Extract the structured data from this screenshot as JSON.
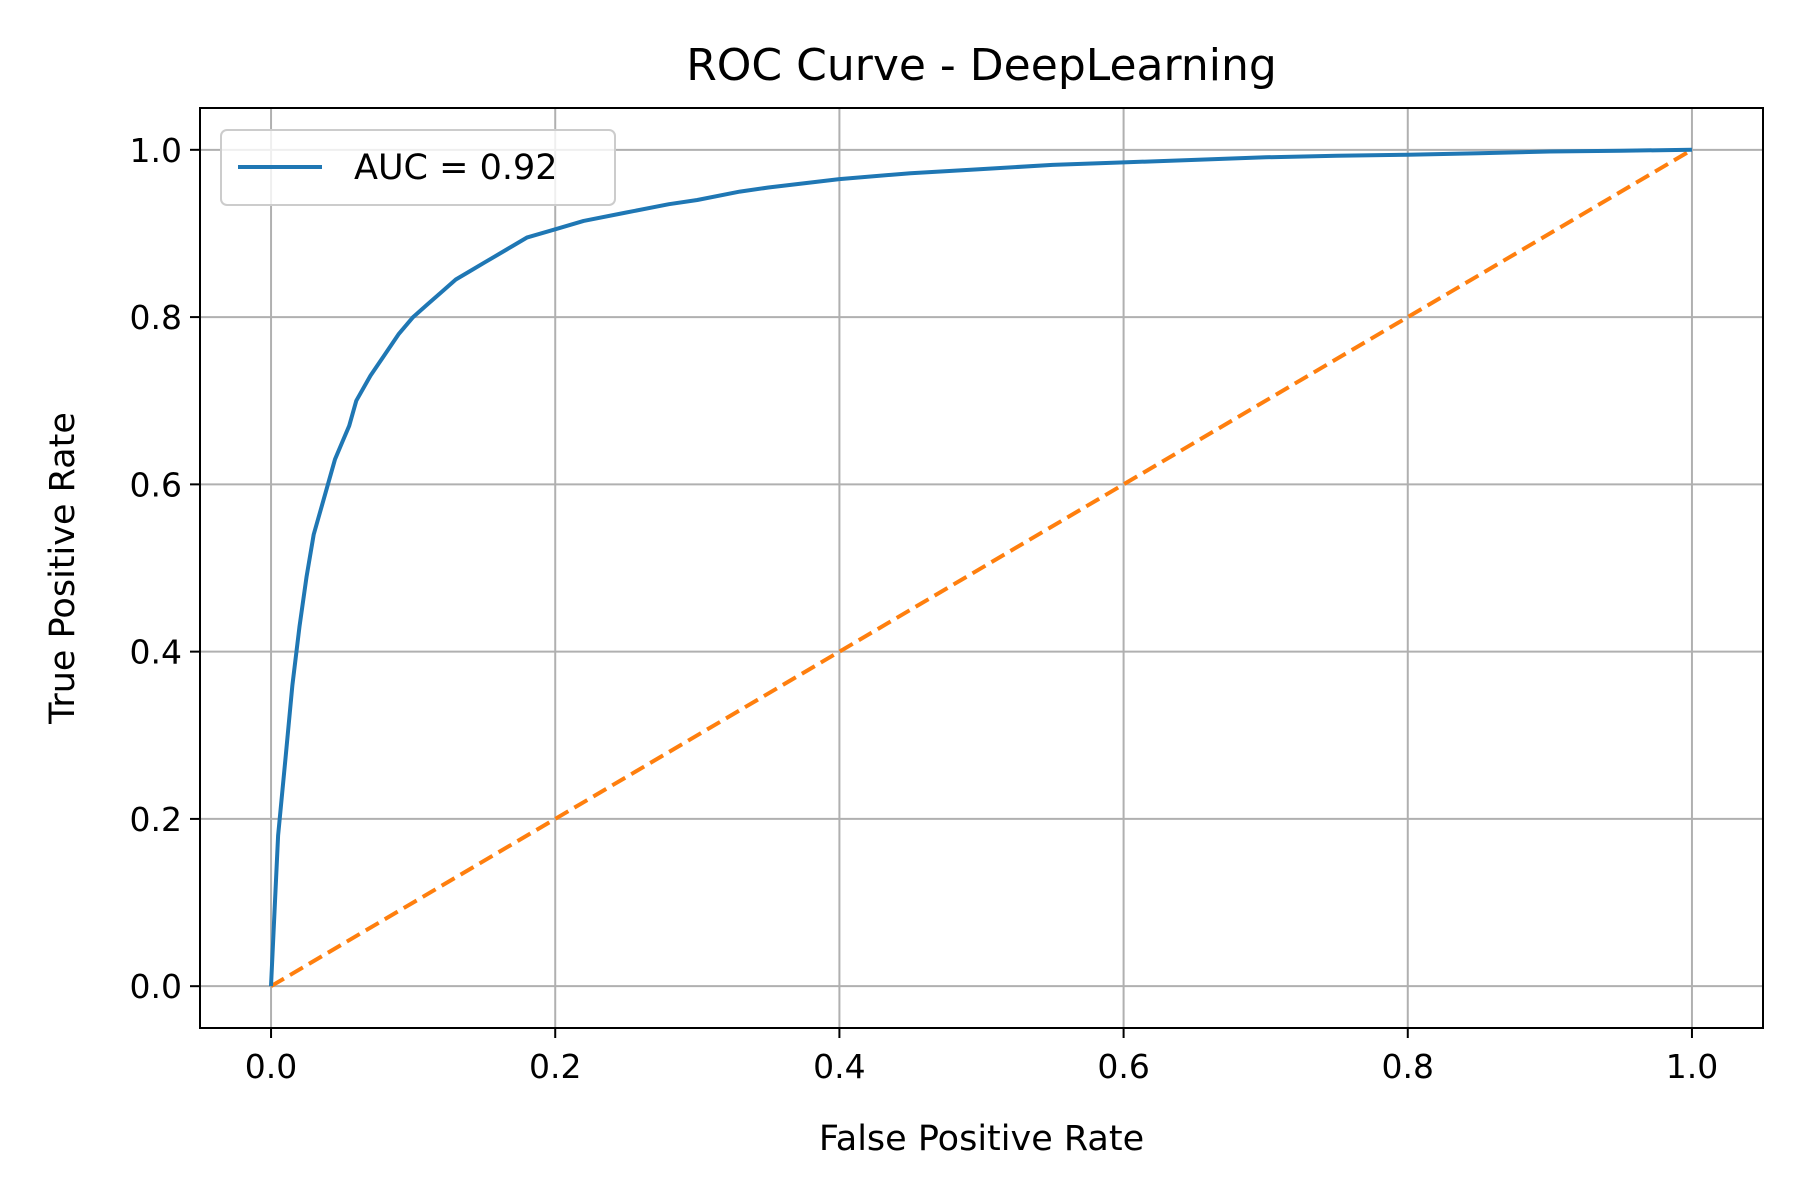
{
  "chart_data": {
    "type": "line",
    "title": "ROC Curve - DeepLearning",
    "xlabel": "False Positive Rate",
    "ylabel": "True Positive Rate",
    "xlim": [
      -0.05,
      1.05
    ],
    "ylim": [
      -0.05,
      1.05
    ],
    "xticks": [
      0.0,
      0.2,
      0.4,
      0.6,
      0.8,
      1.0
    ],
    "yticks": [
      0.0,
      0.2,
      0.4,
      0.6,
      0.8,
      1.0
    ],
    "xtick_labels": [
      "0.0",
      "0.2",
      "0.4",
      "0.6",
      "0.8",
      "1.0"
    ],
    "ytick_labels": [
      "0.0",
      "0.2",
      "0.4",
      "0.6",
      "0.8",
      "1.0"
    ],
    "grid": true,
    "legend_position": "top-left",
    "series": [
      {
        "name": "AUC = 0.92",
        "color": "#1f77b4",
        "style": "solid",
        "x": [
          0.0,
          0.005,
          0.01,
          0.015,
          0.02,
          0.025,
          0.03,
          0.035,
          0.04,
          0.045,
          0.05,
          0.055,
          0.06,
          0.07,
          0.08,
          0.09,
          0.1,
          0.11,
          0.12,
          0.13,
          0.14,
          0.15,
          0.16,
          0.17,
          0.18,
          0.2,
          0.22,
          0.25,
          0.28,
          0.3,
          0.33,
          0.35,
          0.4,
          0.45,
          0.5,
          0.55,
          0.6,
          0.65,
          0.7,
          0.75,
          0.8,
          0.85,
          0.9,
          0.95,
          1.0
        ],
        "y": [
          0.0,
          0.18,
          0.27,
          0.36,
          0.43,
          0.49,
          0.54,
          0.57,
          0.6,
          0.63,
          0.65,
          0.67,
          0.7,
          0.73,
          0.755,
          0.78,
          0.8,
          0.815,
          0.83,
          0.845,
          0.855,
          0.865,
          0.875,
          0.885,
          0.895,
          0.905,
          0.915,
          0.925,
          0.935,
          0.94,
          0.95,
          0.955,
          0.965,
          0.972,
          0.977,
          0.982,
          0.985,
          0.988,
          0.991,
          0.993,
          0.994,
          0.996,
          0.998,
          0.999,
          1.0
        ]
      },
      {
        "name": "",
        "color": "#ff7f0e",
        "style": "dashed",
        "x": [
          0.0,
          1.0
        ],
        "y": [
          0.0,
          1.0
        ]
      }
    ]
  }
}
